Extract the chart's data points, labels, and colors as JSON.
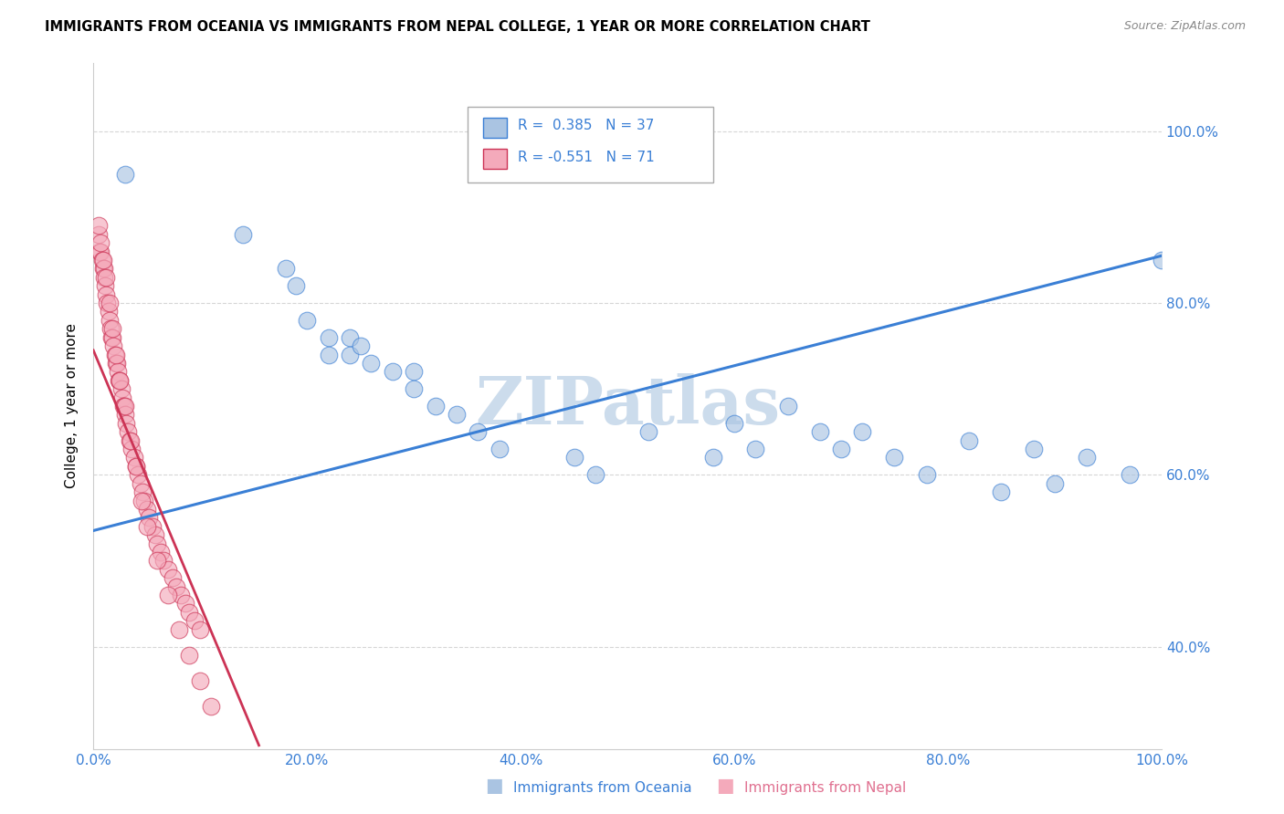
{
  "title": "IMMIGRANTS FROM OCEANIA VS IMMIGRANTS FROM NEPAL COLLEGE, 1 YEAR OR MORE CORRELATION CHART",
  "source": "Source: ZipAtlas.com",
  "ylabel": "College, 1 year or more",
  "xticklabels": [
    "0.0%",
    "20.0%",
    "40.0%",
    "60.0%",
    "80.0%",
    "100.0%"
  ],
  "yticklabels_right": [
    "40.0%",
    "60.0%",
    "80.0%",
    "100.0%"
  ],
  "xlim": [
    0,
    1
  ],
  "ylim": [
    0.28,
    1.08
  ],
  "legend_r1": "R =  0.385",
  "legend_n1": "N = 37",
  "legend_r2": "R = -0.551",
  "legend_n2": "N = 71",
  "color_oceania": "#aac4e2",
  "color_nepal": "#f4aabb",
  "line_color_oceania": "#3a7fd5",
  "line_color_nepal": "#cc3355",
  "watermark": "ZIPatlas",
  "watermark_color": "#ccdcec",
  "oceania_x": [
    0.03,
    0.14,
    0.18,
    0.19,
    0.2,
    0.22,
    0.22,
    0.24,
    0.24,
    0.25,
    0.26,
    0.28,
    0.3,
    0.3,
    0.32,
    0.34,
    0.36,
    0.38,
    0.45,
    0.47,
    0.52,
    0.58,
    0.6,
    0.62,
    0.65,
    0.68,
    0.7,
    0.72,
    0.75,
    0.78,
    0.82,
    0.85,
    0.88,
    0.9,
    0.93,
    0.97,
    1.0
  ],
  "oceania_y": [
    0.95,
    0.88,
    0.84,
    0.82,
    0.78,
    0.76,
    0.74,
    0.76,
    0.74,
    0.75,
    0.73,
    0.72,
    0.72,
    0.7,
    0.68,
    0.67,
    0.65,
    0.63,
    0.62,
    0.6,
    0.65,
    0.62,
    0.66,
    0.63,
    0.68,
    0.65,
    0.63,
    0.65,
    0.62,
    0.6,
    0.64,
    0.58,
    0.63,
    0.59,
    0.62,
    0.6,
    0.85
  ],
  "nepal_x": [
    0.005,
    0.006,
    0.007,
    0.008,
    0.009,
    0.01,
    0.01,
    0.011,
    0.012,
    0.013,
    0.014,
    0.015,
    0.016,
    0.017,
    0.018,
    0.019,
    0.02,
    0.021,
    0.022,
    0.023,
    0.024,
    0.025,
    0.026,
    0.027,
    0.028,
    0.029,
    0.03,
    0.031,
    0.032,
    0.034,
    0.036,
    0.038,
    0.04,
    0.042,
    0.044,
    0.046,
    0.048,
    0.05,
    0.052,
    0.055,
    0.058,
    0.06,
    0.063,
    0.066,
    0.07,
    0.074,
    0.078,
    0.082,
    0.086,
    0.09,
    0.095,
    0.1,
    0.005,
    0.007,
    0.009,
    0.012,
    0.015,
    0.018,
    0.021,
    0.025,
    0.03,
    0.035,
    0.04,
    0.045,
    0.05,
    0.06,
    0.07,
    0.08,
    0.09,
    0.1,
    0.11
  ],
  "nepal_y": [
    0.88,
    0.86,
    0.86,
    0.85,
    0.84,
    0.84,
    0.83,
    0.82,
    0.81,
    0.8,
    0.79,
    0.78,
    0.77,
    0.76,
    0.76,
    0.75,
    0.74,
    0.73,
    0.73,
    0.72,
    0.71,
    0.71,
    0.7,
    0.69,
    0.68,
    0.68,
    0.67,
    0.66,
    0.65,
    0.64,
    0.63,
    0.62,
    0.61,
    0.6,
    0.59,
    0.58,
    0.57,
    0.56,
    0.55,
    0.54,
    0.53,
    0.52,
    0.51,
    0.5,
    0.49,
    0.48,
    0.47,
    0.46,
    0.45,
    0.44,
    0.43,
    0.42,
    0.89,
    0.87,
    0.85,
    0.83,
    0.8,
    0.77,
    0.74,
    0.71,
    0.68,
    0.64,
    0.61,
    0.57,
    0.54,
    0.5,
    0.46,
    0.42,
    0.39,
    0.36,
    0.33
  ],
  "blue_line_x": [
    0.0,
    1.0
  ],
  "blue_line_y": [
    0.535,
    0.855
  ],
  "pink_line_x": [
    0.0,
    0.155
  ],
  "pink_line_y": [
    0.745,
    0.285
  ]
}
